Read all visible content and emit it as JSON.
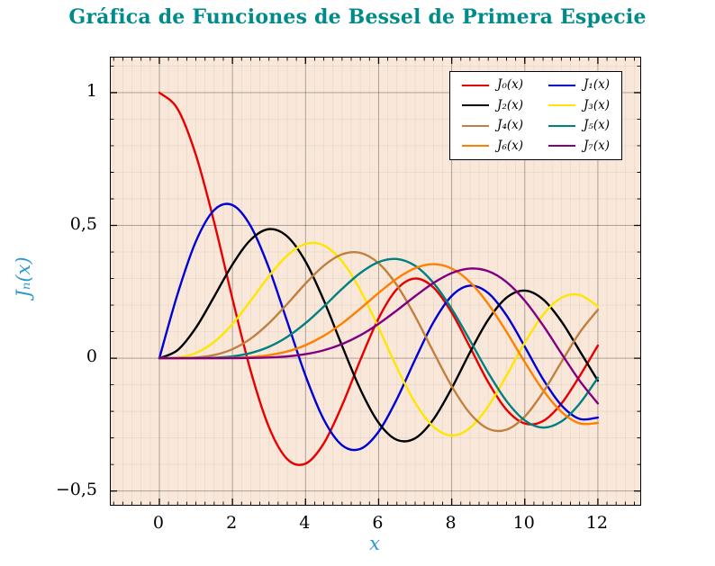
{
  "colors": {
    "title": "#008b8b",
    "axis_label": "#2f97d4",
    "plot_bg": "#f9e8da",
    "plot_border": "#000000",
    "grid_major": "rgba(0,0,0,0.30)",
    "grid_minor": "rgba(0,0,0,0.07)",
    "tick": "#000000",
    "legend_bg": "#ffffff",
    "legend_border": "#000000"
  },
  "chart_data": {
    "type": "line",
    "title": "Gráfica de Funciones de Bessel de Primera Especie",
    "xlabel": "x",
    "ylabel": "Jₙ(x)",
    "xlim": [
      -1.33,
      13.16
    ],
    "ylim": [
      -0.552,
      1.132
    ],
    "grid": "both",
    "legend_position": "top-right",
    "x_major_ticks": [
      0,
      2,
      4,
      6,
      8,
      10,
      12
    ],
    "x_tick_labels": [
      "0",
      "2",
      "4",
      "6",
      "8",
      "10",
      "12"
    ],
    "y_major_ticks": [
      -0.5,
      0,
      0.5,
      1
    ],
    "y_tick_labels": [
      "−0,5",
      "0",
      "0,5",
      "1"
    ],
    "x_minor_step": 0.25,
    "y_minor_step": 0.1,
    "x": [
      0,
      0.5,
      1,
      1.5,
      2,
      2.5,
      3,
      3.5,
      4,
      4.5,
      5,
      5.5,
      6,
      6.5,
      7,
      7.5,
      8,
      8.5,
      9,
      9.5,
      10,
      10.5,
      11,
      11.5,
      12
    ],
    "series": [
      {
        "name": "J₀(x)",
        "color": "#e60000",
        "values": [
          1,
          0.9385,
          0.7652,
          0.5118,
          0.2239,
          -0.0484,
          -0.2601,
          -0.3801,
          -0.3971,
          -0.3205,
          -0.1776,
          -0.0068,
          0.1506,
          0.2601,
          0.3001,
          0.2663,
          0.1717,
          0.0419,
          -0.0903,
          -0.1939,
          -0.2459,
          -0.2366,
          -0.1712,
          -0.0677,
          0.0477
        ]
      },
      {
        "name": "J₁(x)",
        "color": "#0000d5",
        "values": [
          0,
          0.2423,
          0.4401,
          0.5579,
          0.5767,
          0.4971,
          0.3391,
          0.1374,
          -0.066,
          -0.2311,
          -0.3276,
          -0.3414,
          -0.2767,
          -0.1538,
          -0.0047,
          0.1352,
          0.2346,
          0.2731,
          0.2453,
          0.1613,
          0.0435,
          -0.0789,
          -0.1768,
          -0.2284,
          -0.2234
        ]
      },
      {
        "name": "J₂(x)",
        "color": "#000000",
        "values": [
          0,
          0.0306,
          0.1149,
          0.2321,
          0.3528,
          0.4461,
          0.4861,
          0.4586,
          0.3641,
          0.2178,
          0.0466,
          -0.1173,
          -0.2429,
          -0.3074,
          -0.3014,
          -0.2303,
          -0.113,
          0.0223,
          0.1448,
          0.2279,
          0.2546,
          0.2216,
          0.139,
          0.0279,
          -0.0849
        ]
      },
      {
        "name": "J₃(x)",
        "color": "#ffe600",
        "values": [
          0,
          0.0026,
          0.0196,
          0.061,
          0.1289,
          0.2166,
          0.3091,
          0.3868,
          0.4302,
          0.4247,
          0.3648,
          0.2561,
          0.1148,
          -0.0353,
          -0.1676,
          -0.2581,
          -0.2911,
          -0.2626,
          -0.1809,
          -0.0653,
          0.0584,
          0.1633,
          0.2273,
          0.2381,
          0.1951
        ]
      },
      {
        "name": "J₄(x)",
        "color": "#bf8040",
        "values": [
          0,
          0.0002,
          0.0025,
          0.0118,
          0.034,
          0.0738,
          0.132,
          0.2044,
          0.2811,
          0.3484,
          0.3912,
          0.3967,
          0.3576,
          0.2748,
          0.1578,
          0.0238,
          -0.1054,
          -0.2077,
          -0.2655,
          -0.2691,
          -0.2196,
          -0.1283,
          -0.015,
          0.0963,
          0.1825
        ]
      },
      {
        "name": "J₅(x)",
        "color": "#008080",
        "values": [
          0,
          0.0,
          0.0002,
          0.0018,
          0.007,
          0.0195,
          0.043,
          0.0804,
          0.1321,
          0.1947,
          0.2611,
          0.3209,
          0.3621,
          0.3736,
          0.3479,
          0.2835,
          0.1858,
          0.0671,
          -0.055,
          -0.1613,
          -0.2341,
          -0.2611,
          -0.2383,
          -0.1711,
          -0.0735
        ]
      },
      {
        "name": "J₆(x)",
        "color": "#ff8000",
        "values": [
          0,
          0.0,
          0.0,
          0.0002,
          0.0012,
          0.0042,
          0.0114,
          0.0254,
          0.0491,
          0.0843,
          0.131,
          0.1868,
          0.2458,
          0.2999,
          0.3392,
          0.3541,
          0.3376,
          0.2867,
          0.2043,
          0.0993,
          -0.0145,
          -0.1203,
          -0.2016,
          -0.2451,
          -0.2437
        ]
      },
      {
        "name": "J₇(x)",
        "color": "#800080",
        "values": [
          0,
          0.0,
          0.0,
          0.0,
          0.0002,
          0.0008,
          0.0025,
          0.0067,
          0.0152,
          0.03,
          0.0534,
          0.0866,
          0.1296,
          0.1801,
          0.2336,
          0.2832,
          0.3206,
          0.3376,
          0.3275,
          0.2868,
          0.2167,
          0.1236,
          0.0184,
          -0.0846,
          -0.1703
        ]
      }
    ]
  }
}
